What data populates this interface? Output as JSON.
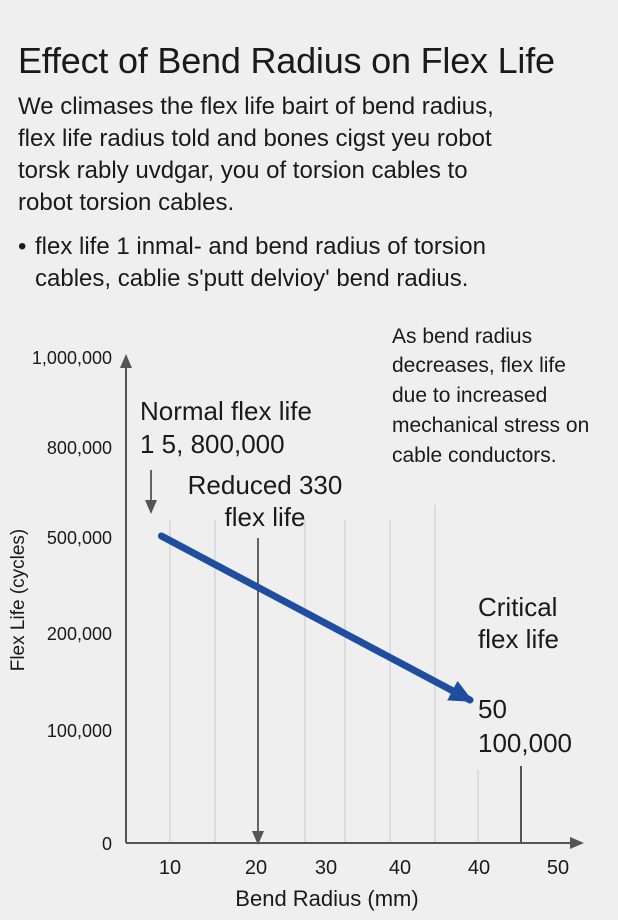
{
  "header": {
    "title": "Effect of Bend Radius on Flex Life",
    "intro_lines": [
      "We climases the flex life bairt of bend radius,",
      "flex life radius told and bones cigst yeu robot",
      "torsk rably uvdgar, you of torsion cables to",
      "robot torsion cables."
    ],
    "bullet_marker": "•",
    "bullet_lines": [
      "flex life 1 inmal- and bend radius of torsion",
      "cables,  cablie s'putt delvioy' bend radius."
    ]
  },
  "chart_data": {
    "type": "line",
    "title": "",
    "xlabel": "Bend Radius (mm)",
    "ylabel": "Flex Life (cycles)",
    "x_tick_labels": [
      "10",
      "20",
      "30",
      "40",
      "40",
      "50"
    ],
    "y_tick_labels": [
      "1,000,000",
      "800,000",
      "500,000",
      "200,000",
      "100,000",
      "0"
    ],
    "series": [
      {
        "x": [
          9,
          40
        ],
        "y": [
          500000,
          100000
        ],
        "color": "#1f4ea0"
      }
    ],
    "annotations": [
      {
        "id": "normal",
        "lines": [
          "Normal flex life",
          "1 5, 800,000"
        ]
      },
      {
        "id": "reduced",
        "lines": [
          "Reduced 330",
          "flex life"
        ]
      },
      {
        "id": "critical",
        "lines": [
          "Critical",
          "flex life"
        ]
      },
      {
        "id": "critical-value",
        "lines": [
          "50",
          "100,000"
        ]
      },
      {
        "id": "note",
        "lines": [
          "As bend radius",
          "decreases, flex life",
          "due to increased",
          "mechanical stress on",
          "cable conductors."
        ]
      }
    ],
    "grid": "vertical",
    "colors": {
      "line": "#1f4ea0",
      "axis": "#555555",
      "grid": "#d6d6d6",
      "text": "#1a1a1a"
    }
  }
}
